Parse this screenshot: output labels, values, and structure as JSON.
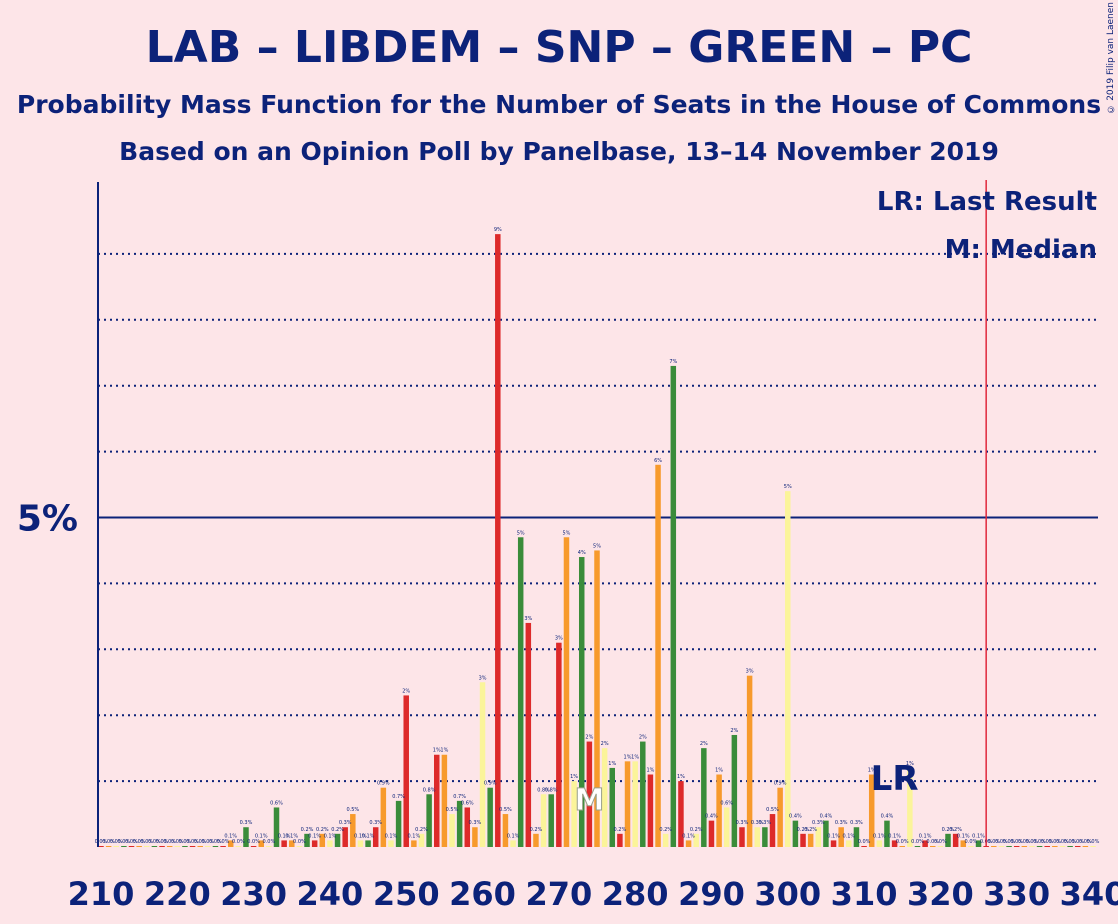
{
  "header": {
    "title": "LAB – LIBDEM – SNP – GREEN – PC",
    "subtitle": "Probability Mass Function for the Number of Seats in the House of Commons",
    "poll": "Based on an Opinion Poll by Panelbase, 13–14 November 2019",
    "copyright": "© 2019 Filip van Laenen"
  },
  "colors": {
    "background": "#fde5e8",
    "text": "#0c2279",
    "lab_red": "#dd2a2a",
    "orange": "#f79a2c",
    "green": "#3a8c3a",
    "light_yellow": "#fbf49a",
    "last_result_line": "#e0283c",
    "axis": "#0c2279"
  },
  "chart_data": {
    "type": "bar",
    "x_axis": {
      "range": [
        210,
        340
      ],
      "ticks": [
        210,
        220,
        230,
        240,
        250,
        260,
        270,
        280,
        290,
        300,
        310,
        320,
        330,
        340
      ]
    },
    "y_axis": {
      "range_percent": [
        0,
        10
      ],
      "labeled_tick": "5%",
      "labeled_value": 5,
      "grid": "dotted, every 1%"
    },
    "legend": {
      "lr": "LR: Last Result",
      "m": "M: Median",
      "placement": "top-right"
    },
    "last_result": {
      "seat": 326,
      "label": "LR"
    },
    "median": {
      "seat": 274,
      "label": "M"
    },
    "series_colors_cycle": [
      "lab_red",
      "orange",
      "light_yellow",
      "green"
    ],
    "bars": [
      {
        "x": 210,
        "pct": 0.0
      },
      {
        "x": 211,
        "pct": 0.0
      },
      {
        "x": 212,
        "pct": 0.0
      },
      {
        "x": 213,
        "pct": 0.0
      },
      {
        "x": 214,
        "pct": 0.0
      },
      {
        "x": 215,
        "pct": 0.0
      },
      {
        "x": 216,
        "pct": 0.0
      },
      {
        "x": 217,
        "pct": 0.0
      },
      {
        "x": 218,
        "pct": 0.0
      },
      {
        "x": 219,
        "pct": 0.0
      },
      {
        "x": 220,
        "pct": 0.0
      },
      {
        "x": 221,
        "pct": 0.0
      },
      {
        "x": 222,
        "pct": 0.0
      },
      {
        "x": 223,
        "pct": 0.0
      },
      {
        "x": 224,
        "pct": 0.0
      },
      {
        "x": 225,
        "pct": 0.0
      },
      {
        "x": 226,
        "pct": 0.0
      },
      {
        "x": 227,
        "pct": 0.1
      },
      {
        "x": 228,
        "pct": 0.0
      },
      {
        "x": 229,
        "pct": 0.3
      },
      {
        "x": 230,
        "pct": 0.0
      },
      {
        "x": 231,
        "pct": 0.1
      },
      {
        "x": 232,
        "pct": 0.0
      },
      {
        "x": 233,
        "pct": 0.6
      },
      {
        "x": 234,
        "pct": 0.1
      },
      {
        "x": 235,
        "pct": 0.1
      },
      {
        "x": 236,
        "pct": 0.0
      },
      {
        "x": 237,
        "pct": 0.2
      },
      {
        "x": 238,
        "pct": 0.1
      },
      {
        "x": 239,
        "pct": 0.2
      },
      {
        "x": 240,
        "pct": 0.1
      },
      {
        "x": 241,
        "pct": 0.2
      },
      {
        "x": 242,
        "pct": 0.3
      },
      {
        "x": 243,
        "pct": 0.5
      },
      {
        "x": 244,
        "pct": 0.1
      },
      {
        "x": 245,
        "pct": 0.1
      },
      {
        "x": 246,
        "pct": 0.3
      },
      {
        "x": 247,
        "pct": 0.9
      },
      {
        "x": 248,
        "pct": 0.1
      },
      {
        "x": 249,
        "pct": 0.7
      },
      {
        "x": 250,
        "pct": 2.3
      },
      {
        "x": 251,
        "pct": 0.1
      },
      {
        "x": 252,
        "pct": 0.2
      },
      {
        "x": 253,
        "pct": 0.8
      },
      {
        "x": 254,
        "pct": 1.4
      },
      {
        "x": 255,
        "pct": 1.4
      },
      {
        "x": 256,
        "pct": 0.5
      },
      {
        "x": 257,
        "pct": 0.7
      },
      {
        "x": 258,
        "pct": 0.6
      },
      {
        "x": 259,
        "pct": 0.3
      },
      {
        "x": 260,
        "pct": 2.5
      },
      {
        "x": 261,
        "pct": 0.9
      },
      {
        "x": 262,
        "pct": 9.3
      },
      {
        "x": 263,
        "pct": 0.5
      },
      {
        "x": 264,
        "pct": 0.1
      },
      {
        "x": 265,
        "pct": 4.7
      },
      {
        "x": 266,
        "pct": 3.4
      },
      {
        "x": 267,
        "pct": 0.2
      },
      {
        "x": 268,
        "pct": 0.8
      },
      {
        "x": 269,
        "pct": 0.8
      },
      {
        "x": 270,
        "pct": 3.1
      },
      {
        "x": 271,
        "pct": 4.7
      },
      {
        "x": 272,
        "pct": 1.0
      },
      {
        "x": 273,
        "pct": 4.4
      },
      {
        "x": 274,
        "pct": 1.6
      },
      {
        "x": 275,
        "pct": 4.5
      },
      {
        "x": 276,
        "pct": 1.5
      },
      {
        "x": 277,
        "pct": 1.2
      },
      {
        "x": 278,
        "pct": 0.2
      },
      {
        "x": 279,
        "pct": 1.3
      },
      {
        "x": 280,
        "pct": 1.3
      },
      {
        "x": 281,
        "pct": 1.6
      },
      {
        "x": 282,
        "pct": 1.1
      },
      {
        "x": 283,
        "pct": 5.8
      },
      {
        "x": 284,
        "pct": 0.2
      },
      {
        "x": 285,
        "pct": 7.3
      },
      {
        "x": 286,
        "pct": 1.0
      },
      {
        "x": 287,
        "pct": 0.1
      },
      {
        "x": 288,
        "pct": 0.2
      },
      {
        "x": 289,
        "pct": 1.5
      },
      {
        "x": 290,
        "pct": 0.4
      },
      {
        "x": 291,
        "pct": 1.1
      },
      {
        "x": 292,
        "pct": 0.6
      },
      {
        "x": 293,
        "pct": 1.7
      },
      {
        "x": 294,
        "pct": 0.3
      },
      {
        "x": 295,
        "pct": 2.6
      },
      {
        "x": 296,
        "pct": 0.3
      },
      {
        "x": 297,
        "pct": 0.3
      },
      {
        "x": 298,
        "pct": 0.5
      },
      {
        "x": 299,
        "pct": 0.9
      },
      {
        "x": 300,
        "pct": 5.4
      },
      {
        "x": 301,
        "pct": 0.4
      },
      {
        "x": 302,
        "pct": 0.2
      },
      {
        "x": 303,
        "pct": 0.2
      },
      {
        "x": 304,
        "pct": 0.3
      },
      {
        "x": 305,
        "pct": 0.4
      },
      {
        "x": 306,
        "pct": 0.1
      },
      {
        "x": 307,
        "pct": 0.3
      },
      {
        "x": 308,
        "pct": 0.1
      },
      {
        "x": 309,
        "pct": 0.3
      },
      {
        "x": 310,
        "pct": 0.0
      },
      {
        "x": 311,
        "pct": 1.1
      },
      {
        "x": 312,
        "pct": 0.1
      },
      {
        "x": 313,
        "pct": 0.4
      },
      {
        "x": 314,
        "pct": 0.1
      },
      {
        "x": 315,
        "pct": 0.0
      },
      {
        "x": 316,
        "pct": 1.2
      },
      {
        "x": 317,
        "pct": 0.0
      },
      {
        "x": 318,
        "pct": 0.1
      },
      {
        "x": 319,
        "pct": 0.0
      },
      {
        "x": 320,
        "pct": 0.0
      },
      {
        "x": 321,
        "pct": 0.2
      },
      {
        "x": 322,
        "pct": 0.2
      },
      {
        "x": 323,
        "pct": 0.1
      },
      {
        "x": 324,
        "pct": 0.0
      },
      {
        "x": 325,
        "pct": 0.1
      },
      {
        "x": 326,
        "pct": 0.0
      },
      {
        "x": 327,
        "pct": 0.0
      },
      {
        "x": 328,
        "pct": 0.0
      },
      {
        "x": 329,
        "pct": 0.0
      },
      {
        "x": 330,
        "pct": 0.0
      },
      {
        "x": 331,
        "pct": 0.0
      },
      {
        "x": 332,
        "pct": 0.0
      },
      {
        "x": 333,
        "pct": 0.0
      },
      {
        "x": 334,
        "pct": 0.0
      },
      {
        "x": 335,
        "pct": 0.0
      },
      {
        "x": 336,
        "pct": 0.0
      },
      {
        "x": 337,
        "pct": 0.0
      },
      {
        "x": 338,
        "pct": 0.0
      },
      {
        "x": 339,
        "pct": 0.0
      },
      {
        "x": 340,
        "pct": 0.0
      }
    ]
  }
}
